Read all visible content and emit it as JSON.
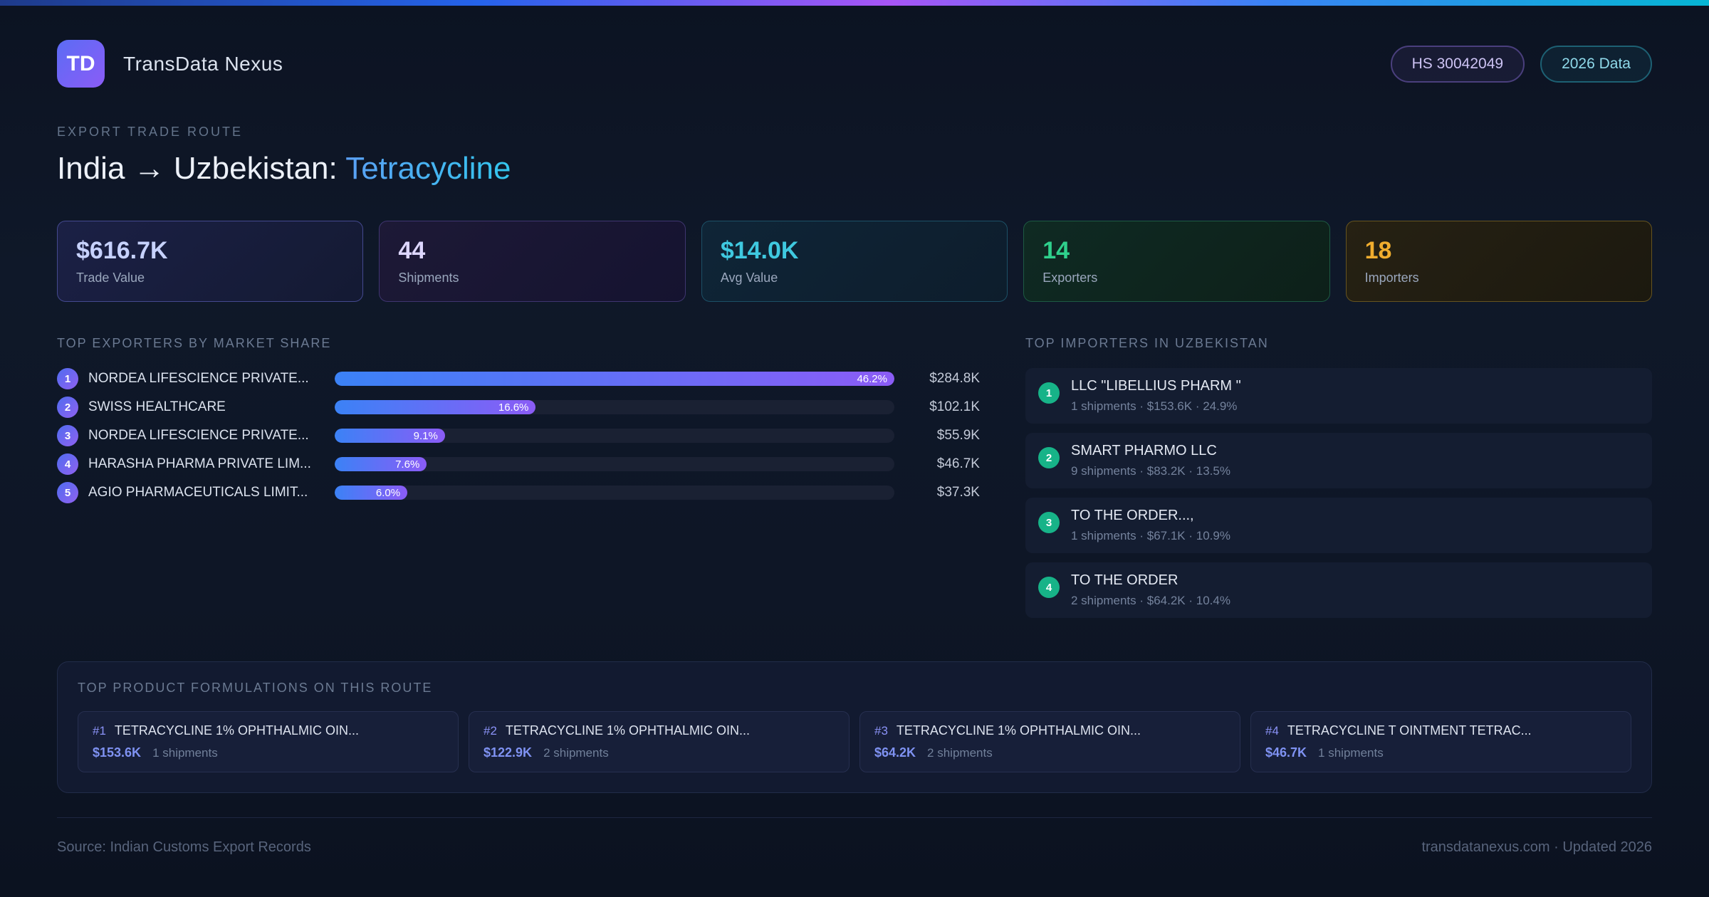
{
  "header": {
    "logo_text": "TD",
    "app_name": "TransData Nexus",
    "badges": {
      "hs_code": "HS 30042049",
      "data_year": "2026 Data"
    }
  },
  "hero": {
    "eyebrow": "EXPORT TRADE ROUTE",
    "title_prefix": "India → Uzbekistan: ",
    "title_highlight": "Tetracycline"
  },
  "stats": {
    "cards": [
      {
        "value": "$616.7K",
        "label": "Trade Value",
        "accent": "#c7d2fe"
      },
      {
        "value": "44",
        "label": "Shipments",
        "accent": "#ddd6fe"
      },
      {
        "value": "$14.0K",
        "label": "Avg Value",
        "accent": "#3fc9e0"
      },
      {
        "value": "14",
        "label": "Exporters",
        "accent": "#2fd08c"
      },
      {
        "value": "18",
        "label": "Importers",
        "accent": "#f0ad2e"
      }
    ]
  },
  "exporters": {
    "heading": "TOP EXPORTERS BY MARKET SHARE",
    "rows": [
      {
        "rank": "1",
        "name": "NORDEA LIFESCIENCE PRIVATE...",
        "share_pct": 46.2,
        "share_label": "46.2%",
        "value": "$284.8K"
      },
      {
        "rank": "2",
        "name": "SWISS HEALTHCARE",
        "share_pct": 16.6,
        "share_label": "16.6%",
        "value": "$102.1K"
      },
      {
        "rank": "3",
        "name": "NORDEA LIFESCIENCE PRIVATE...",
        "share_pct": 9.1,
        "share_label": "9.1%",
        "value": "$55.9K"
      },
      {
        "rank": "4",
        "name": "HARASHA PHARMA PRIVATE LIM...",
        "share_pct": 7.6,
        "share_label": "7.6%",
        "value": "$46.7K"
      },
      {
        "rank": "5",
        "name": "AGIO PHARMACEUTICALS LIMIT...",
        "share_pct": 6.0,
        "share_label": "6.0%",
        "value": "$37.3K"
      }
    ]
  },
  "importers": {
    "heading": "TOP IMPORTERS IN UZBEKISTAN",
    "rows": [
      {
        "rank": "1",
        "name": "LLC \"LIBELLIUS PHARM \"",
        "meta": "1 shipments · $153.6K · 24.9%"
      },
      {
        "rank": "2",
        "name": "SMART PHARMO LLC",
        "meta": "9 shipments · $83.2K · 13.5%"
      },
      {
        "rank": "3",
        "name": "TO THE ORDER...,",
        "meta": "1 shipments · $67.1K · 10.9%"
      },
      {
        "rank": "4",
        "name": "TO THE ORDER",
        "meta": "2 shipments · $64.2K · 10.4%"
      }
    ]
  },
  "products": {
    "heading": "TOP PRODUCT FORMULATIONS ON THIS ROUTE",
    "cards": [
      {
        "rank": "#1",
        "name": "TETRACYCLINE 1% OPHTHALMIC OIN...",
        "value": "$153.6K",
        "shipments": "1 shipments"
      },
      {
        "rank": "#2",
        "name": "TETRACYCLINE 1% OPHTHALMIC OIN...",
        "value": "$122.9K",
        "shipments": "2 shipments"
      },
      {
        "rank": "#3",
        "name": "TETRACYCLINE 1% OPHTHALMIC OIN...",
        "value": "$64.2K",
        "shipments": "2 shipments"
      },
      {
        "rank": "#4",
        "name": "TETRACYCLINE T OINTMENT TETRAC...",
        "value": "$46.7K",
        "shipments": "1 shipments"
      }
    ]
  },
  "footer": {
    "source": "Source: Indian Customs Export Records",
    "site": "transdatanexus.com · Updated 2026"
  },
  "colors": {
    "bar_gradient_start": "#3b82f6",
    "bar_gradient_end": "#8b5cf6",
    "importer_rank_circle": "#17b388",
    "title_highlight": "#33c6ee",
    "topbar_gradient": [
      "#2563eb",
      "#a855f7",
      "#06b6d4"
    ]
  }
}
